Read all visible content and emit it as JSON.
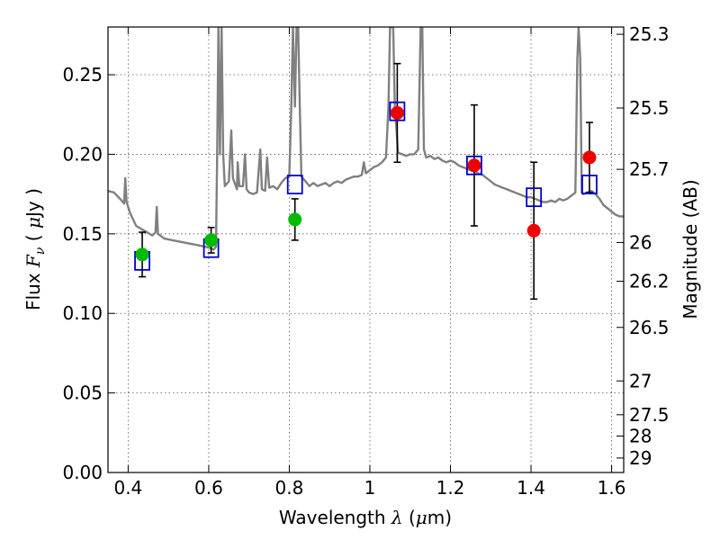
{
  "chart_data": {
    "type": "scatter",
    "xlabel": {
      "pre": "Wavelength  ",
      "sym": "λ",
      "post": " (",
      "mu": "μ",
      "unit": "m)"
    },
    "ylabel": {
      "pre": "Flux  ",
      "sym": "F",
      "sub": "ν",
      "post": "  (  ",
      "mu": "μ",
      "unit": "Jy )"
    },
    "y2label": "Magnitude (AB)",
    "xlim": [
      0.35,
      1.63
    ],
    "ylim": [
      0.0,
      0.28
    ],
    "grid": true,
    "x_ticks": [
      0.4,
      0.6,
      0.8,
      1.0,
      1.2,
      1.4,
      1.6
    ],
    "x_tick_labels": [
      "0.4",
      "0.6",
      "0.8",
      "1",
      "1.2",
      "1.4",
      "1.6"
    ],
    "y_ticks": [
      0.0,
      0.05,
      0.1,
      0.15,
      0.2,
      0.25
    ],
    "y_tick_labels": [
      "0.00",
      "0.05",
      "0.10",
      "0.15",
      "0.20",
      "0.25"
    ],
    "mag_ticks": [
      {
        "mag": 25.3,
        "label": "25.3"
      },
      {
        "mag": 25.5,
        "label": "25.5"
      },
      {
        "mag": 25.7,
        "label": "25.7"
      },
      {
        "mag": 26.0,
        "label": "26"
      },
      {
        "mag": 26.2,
        "label": "26.2"
      },
      {
        "mag": 26.5,
        "label": "26.5"
      },
      {
        "mag": 27.0,
        "label": "27"
      },
      {
        "mag": 27.5,
        "label": "27.5"
      },
      {
        "mag": 28.0,
        "label": "28"
      },
      {
        "mag": 29.0,
        "label": "29"
      }
    ],
    "colors": {
      "spectrum": "#808080",
      "green": "#00bb00",
      "red": "#ee0000",
      "model": "#0000cc",
      "error": "#000000",
      "grid": "#555555"
    },
    "observed_green": [
      {
        "x": 0.435,
        "y": 0.137,
        "yerr": 0.014
      },
      {
        "x": 0.606,
        "y": 0.146,
        "yerr": 0.008
      },
      {
        "x": 0.814,
        "y": 0.159,
        "yerr": 0.013
      }
    ],
    "observed_red": [
      {
        "x": 1.068,
        "y": 0.226,
        "yerr": 0.031
      },
      {
        "x": 1.259,
        "y": 0.193,
        "yerr": 0.038
      },
      {
        "x": 1.407,
        "y": 0.152,
        "yerr": 0.043
      },
      {
        "x": 1.545,
        "y": 0.198,
        "yerr": 0.022
      }
    ],
    "model_points": [
      {
        "x": 0.435,
        "y": 0.133
      },
      {
        "x": 0.606,
        "y": 0.141
      },
      {
        "x": 0.814,
        "y": 0.181
      },
      {
        "x": 1.068,
        "y": 0.227
      },
      {
        "x": 1.259,
        "y": 0.193
      },
      {
        "x": 1.407,
        "y": 0.173
      },
      {
        "x": 1.545,
        "y": 0.181
      }
    ],
    "spectrum": [
      [
        0.35,
        0.177
      ],
      [
        0.365,
        0.176
      ],
      [
        0.38,
        0.172
      ],
      [
        0.39,
        0.169
      ],
      [
        0.393,
        0.185
      ],
      [
        0.396,
        0.17
      ],
      [
        0.405,
        0.163
      ],
      [
        0.42,
        0.155
      ],
      [
        0.44,
        0.152
      ],
      [
        0.46,
        0.149
      ],
      [
        0.468,
        0.151
      ],
      [
        0.471,
        0.167
      ],
      [
        0.474,
        0.15
      ],
      [
        0.49,
        0.147
      ],
      [
        0.51,
        0.146
      ],
      [
        0.53,
        0.145
      ],
      [
        0.55,
        0.144
      ],
      [
        0.57,
        0.143
      ],
      [
        0.59,
        0.142
      ],
      [
        0.605,
        0.141
      ],
      [
        0.612,
        0.14
      ],
      [
        0.618,
        0.142
      ],
      [
        0.621,
        0.2
      ],
      [
        0.624,
        0.28
      ],
      [
        0.628,
        0.2
      ],
      [
        0.632,
        0.28
      ],
      [
        0.636,
        0.2
      ],
      [
        0.64,
        0.18
      ],
      [
        0.65,
        0.183
      ],
      [
        0.656,
        0.215
      ],
      [
        0.66,
        0.185
      ],
      [
        0.67,
        0.178
      ],
      [
        0.672,
        0.195
      ],
      [
        0.676,
        0.18
      ],
      [
        0.685,
        0.18
      ],
      [
        0.69,
        0.2
      ],
      [
        0.694,
        0.178
      ],
      [
        0.7,
        0.176
      ],
      [
        0.71,
        0.175
      ],
      [
        0.72,
        0.176
      ],
      [
        0.728,
        0.203
      ],
      [
        0.732,
        0.178
      ],
      [
        0.74,
        0.177
      ],
      [
        0.745,
        0.198
      ],
      [
        0.75,
        0.179
      ],
      [
        0.76,
        0.18
      ],
      [
        0.77,
        0.178
      ],
      [
        0.78,
        0.182
      ],
      [
        0.79,
        0.185
      ],
      [
        0.8,
        0.186
      ],
      [
        0.805,
        0.23
      ],
      [
        0.809,
        0.28
      ],
      [
        0.814,
        0.23
      ],
      [
        0.818,
        0.28
      ],
      [
        0.822,
        0.28
      ],
      [
        0.826,
        0.23
      ],
      [
        0.83,
        0.186
      ],
      [
        0.84,
        0.183
      ],
      [
        0.85,
        0.18
      ],
      [
        0.86,
        0.182
      ],
      [
        0.87,
        0.18
      ],
      [
        0.88,
        0.181
      ],
      [
        0.89,
        0.182
      ],
      [
        0.9,
        0.18
      ],
      [
        0.91,
        0.182
      ],
      [
        0.92,
        0.183
      ],
      [
        0.93,
        0.182
      ],
      [
        0.94,
        0.184
      ],
      [
        0.95,
        0.185
      ],
      [
        0.96,
        0.186
      ],
      [
        0.97,
        0.186
      ],
      [
        0.98,
        0.187
      ],
      [
        0.985,
        0.195
      ],
      [
        0.99,
        0.188
      ],
      [
        1.0,
        0.19
      ],
      [
        1.01,
        0.192
      ],
      [
        1.02,
        0.193
      ],
      [
        1.03,
        0.195
      ],
      [
        1.04,
        0.198
      ],
      [
        1.046,
        0.23
      ],
      [
        1.05,
        0.28
      ],
      [
        1.058,
        0.28
      ],
      [
        1.062,
        0.23
      ],
      [
        1.07,
        0.201
      ],
      [
        1.08,
        0.2
      ],
      [
        1.09,
        0.199
      ],
      [
        1.1,
        0.2
      ],
      [
        1.11,
        0.2
      ],
      [
        1.12,
        0.203
      ],
      [
        1.126,
        0.28
      ],
      [
        1.13,
        0.28
      ],
      [
        1.134,
        0.203
      ],
      [
        1.14,
        0.198
      ],
      [
        1.15,
        0.199
      ],
      [
        1.16,
        0.197
      ],
      [
        1.17,
        0.198
      ],
      [
        1.18,
        0.196
      ],
      [
        1.19,
        0.195
      ],
      [
        1.2,
        0.196
      ],
      [
        1.21,
        0.195
      ],
      [
        1.22,
        0.193
      ],
      [
        1.23,
        0.192
      ],
      [
        1.24,
        0.191
      ],
      [
        1.25,
        0.19
      ],
      [
        1.26,
        0.189
      ],
      [
        1.27,
        0.188
      ],
      [
        1.28,
        0.187
      ],
      [
        1.29,
        0.185
      ],
      [
        1.3,
        0.183
      ],
      [
        1.31,
        0.181
      ],
      [
        1.32,
        0.18
      ],
      [
        1.33,
        0.179
      ],
      [
        1.34,
        0.178
      ],
      [
        1.35,
        0.177
      ],
      [
        1.36,
        0.176
      ],
      [
        1.37,
        0.175
      ],
      [
        1.38,
        0.174
      ],
      [
        1.39,
        0.173
      ],
      [
        1.4,
        0.173
      ],
      [
        1.41,
        0.172
      ],
      [
        1.42,
        0.171
      ],
      [
        1.43,
        0.17
      ],
      [
        1.44,
        0.17
      ],
      [
        1.45,
        0.171
      ],
      [
        1.46,
        0.17
      ],
      [
        1.47,
        0.172
      ],
      [
        1.48,
        0.171
      ],
      [
        1.49,
        0.172
      ],
      [
        1.5,
        0.174
      ],
      [
        1.51,
        0.176
      ],
      [
        1.515,
        0.26
      ],
      [
        1.518,
        0.28
      ],
      [
        1.522,
        0.26
      ],
      [
        1.526,
        0.176
      ],
      [
        1.53,
        0.175
      ],
      [
        1.54,
        0.176
      ],
      [
        1.55,
        0.177
      ],
      [
        1.56,
        0.175
      ],
      [
        1.57,
        0.172
      ],
      [
        1.58,
        0.168
      ],
      [
        1.59,
        0.166
      ],
      [
        1.6,
        0.164
      ],
      [
        1.61,
        0.162
      ],
      [
        1.62,
        0.161
      ],
      [
        1.63,
        0.161
      ]
    ]
  }
}
